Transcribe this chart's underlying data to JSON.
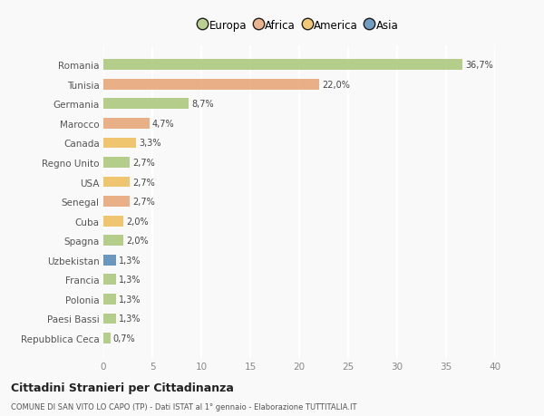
{
  "categories": [
    "Romania",
    "Tunisia",
    "Germania",
    "Marocco",
    "Canada",
    "Regno Unito",
    "USA",
    "Senegal",
    "Cuba",
    "Spagna",
    "Uzbekistan",
    "Francia",
    "Polonia",
    "Paesi Bassi",
    "Repubblica Ceca"
  ],
  "values": [
    36.7,
    22.0,
    8.7,
    4.7,
    3.3,
    2.7,
    2.7,
    2.7,
    2.0,
    2.0,
    1.3,
    1.3,
    1.3,
    1.3,
    0.7
  ],
  "labels": [
    "36,7%",
    "22,0%",
    "8,7%",
    "4,7%",
    "3,3%",
    "2,7%",
    "2,7%",
    "2,7%",
    "2,0%",
    "2,0%",
    "1,3%",
    "1,3%",
    "1,3%",
    "1,3%",
    "0,7%"
  ],
  "colors": [
    "#adc97e",
    "#e8a87c",
    "#adc97e",
    "#e8a87c",
    "#f0c060",
    "#adc97e",
    "#f0c060",
    "#e8a87c",
    "#f0c060",
    "#adc97e",
    "#5b8db8",
    "#adc97e",
    "#adc97e",
    "#adc97e",
    "#adc97e"
  ],
  "legend_labels": [
    "Europa",
    "Africa",
    "America",
    "Asia"
  ],
  "legend_colors": [
    "#adc97e",
    "#e8a87c",
    "#f0c060",
    "#5b8db8"
  ],
  "title": "Cittadini Stranieri per Cittadinanza",
  "subtitle": "COMUNE DI SAN VITO LO CAPO (TP) - Dati ISTAT al 1° gennaio - Elaborazione TUTTITALIA.IT",
  "xlim": [
    0,
    40
  ],
  "xticks": [
    0,
    5,
    10,
    15,
    20,
    25,
    30,
    35,
    40
  ],
  "background_color": "#f9f9f9",
  "grid_color": "#ffffff",
  "bar_height": 0.55
}
